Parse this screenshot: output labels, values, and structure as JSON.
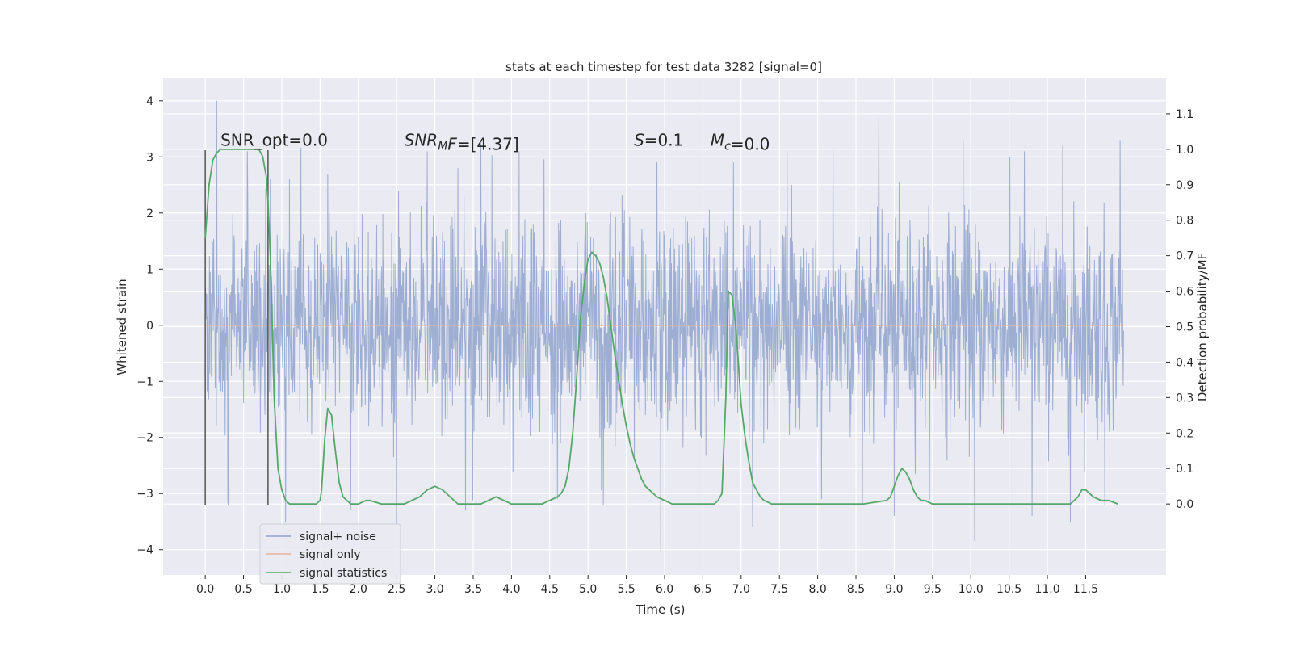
{
  "chart_data": {
    "type": "line",
    "title": "stats at each timestep for test data 3282 [signal=0]",
    "xlabel": "Time (s)",
    "ylabel_left": "Whitened strain",
    "ylabel_right": "Detection probability/MF",
    "xlim": [
      -0.55,
      12.55
    ],
    "ylim_left": [
      -4.45,
      4.4
    ],
    "ylim_right": [
      -0.2,
      1.2
    ],
    "x_ticks": [
      0.0,
      0.5,
      1.0,
      1.5,
      2.0,
      2.5,
      3.0,
      3.5,
      4.0,
      4.5,
      5.0,
      5.5,
      6.0,
      6.5,
      7.0,
      7.5,
      8.0,
      8.5,
      9.0,
      9.5,
      10.0,
      10.5,
      11.0,
      11.5
    ],
    "x_tick_labels": [
      "0.0",
      "0.5",
      "1.0",
      "1.5",
      "2.0",
      "2.5",
      "3.0",
      "3.5",
      "4.0",
      "4.5",
      "5.0",
      "5.5",
      "6.0",
      "6.5",
      "7.0",
      "7.5",
      "8.0",
      "8.5",
      "9.0",
      "9.5",
      "10.0",
      "10.5",
      "11.0",
      "11.5"
    ],
    "y_left_ticks": [
      -4,
      -3,
      -2,
      -1,
      0,
      1,
      2,
      3,
      4
    ],
    "y_left_tick_labels": [
      "−4",
      "−3",
      "−2",
      "−1",
      "0",
      "1",
      "2",
      "3",
      "4"
    ],
    "y_right_ticks": [
      0.0,
      0.1,
      0.2,
      0.3,
      0.4,
      0.5,
      0.6,
      0.7,
      0.8,
      0.9,
      1.0,
      1.1
    ],
    "y_right_tick_labels": [
      "0.0",
      "0.1",
      "0.2",
      "0.3",
      "0.4",
      "0.5",
      "0.6",
      "0.7",
      "0.8",
      "0.9",
      "1.0",
      "1.1"
    ],
    "grid": true,
    "legend_position": "lower-left",
    "annotations": [
      {
        "text": "SNR_opt=0.0",
        "x": 0.2
      },
      {
        "text_main": "SNR",
        "text_sub": "M",
        "text_rest": "F=[4.37]",
        "x": 2.6
      },
      {
        "text_main": "S",
        "text_sub": "",
        "text_rest": "=0.1",
        "x": 5.6
      },
      {
        "text_main": "M",
        "text_sub": "c",
        "text_rest": "=0.0",
        "x": 6.6
      }
    ],
    "annotation_y": 3.2,
    "window_markers": {
      "x": [
        0.0,
        0.82
      ],
      "y_range": [
        -3.2,
        3.12
      ],
      "color": "#555555"
    },
    "series": [
      {
        "name": "signal+ noise",
        "axis": "left",
        "color": "#8fa3cc",
        "t_range": [
          0.0,
          11.995
        ],
        "samples": 2400,
        "envelope_typical": [
          -2.2,
          2.2
        ],
        "spikes": [
          [
            0.15,
            4.0
          ],
          [
            0.55,
            3.1
          ],
          [
            0.85,
            2.6
          ],
          [
            1.1,
            2.6
          ],
          [
            1.6,
            2.7
          ],
          [
            2.5,
            3.85
          ],
          [
            2.9,
            3.1
          ],
          [
            3.3,
            2.8
          ],
          [
            3.6,
            3.25
          ],
          [
            4.1,
            3.1
          ],
          [
            5.9,
            2.9
          ],
          [
            6.9,
            2.9
          ],
          [
            7.6,
            3.1
          ],
          [
            8.2,
            3.15
          ],
          [
            8.8,
            3.75
          ],
          [
            9.9,
            3.3
          ],
          [
            10.7,
            3.1
          ],
          [
            11.2,
            3.2
          ],
          [
            11.95,
            3.3
          ],
          [
            0.3,
            -3.2
          ],
          [
            1.05,
            -3.5
          ],
          [
            1.9,
            -3.3
          ],
          [
            2.5,
            -3.6
          ],
          [
            3.4,
            -3.3
          ],
          [
            4.6,
            -3.1
          ],
          [
            5.2,
            -3.2
          ],
          [
            5.95,
            -4.05
          ],
          [
            7.15,
            -3.6
          ],
          [
            8.05,
            -3.1
          ],
          [
            9.0,
            -3.4
          ],
          [
            10.05,
            -3.85
          ],
          [
            10.8,
            -3.4
          ],
          [
            11.3,
            -3.5
          ],
          [
            11.75,
            -3.2
          ]
        ]
      },
      {
        "name": "signal only",
        "axis": "left",
        "color": "#e8b49b",
        "x": [
          0.0,
          12.0
        ],
        "values": [
          0.0,
          0.0
        ]
      },
      {
        "name": "signal statistics",
        "axis": "right",
        "color": "#55a868",
        "x": [
          0.0,
          0.05,
          0.1,
          0.15,
          0.2,
          0.3,
          0.4,
          0.5,
          0.6,
          0.7,
          0.75,
          0.8,
          0.82,
          0.85,
          0.9,
          0.95,
          1.0,
          1.05,
          1.1,
          1.2,
          1.3,
          1.4,
          1.45,
          1.5,
          1.52,
          1.56,
          1.6,
          1.65,
          1.7,
          1.75,
          1.8,
          1.9,
          2.0,
          2.1,
          2.15,
          2.3,
          2.5,
          2.6,
          2.7,
          2.8,
          2.9,
          3.0,
          3.1,
          3.2,
          3.3,
          3.4,
          3.5,
          3.6,
          3.7,
          3.8,
          3.9,
          4.0,
          4.2,
          4.4,
          4.5,
          4.6,
          4.65,
          4.7,
          4.75,
          4.8,
          4.85,
          4.9,
          4.95,
          5.0,
          5.05,
          5.1,
          5.15,
          5.2,
          5.25,
          5.3,
          5.35,
          5.4,
          5.45,
          5.5,
          5.55,
          5.6,
          5.65,
          5.7,
          5.75,
          5.8,
          5.9,
          6.0,
          6.1,
          6.3,
          6.5,
          6.65,
          6.7,
          6.75,
          6.8,
          6.83,
          6.88,
          6.93,
          6.97,
          7.0,
          7.05,
          7.1,
          7.15,
          7.2,
          7.25,
          7.3,
          7.4,
          7.6,
          8.0,
          8.3,
          8.6,
          8.9,
          8.95,
          9.0,
          9.05,
          9.1,
          9.15,
          9.2,
          9.25,
          9.3,
          9.35,
          9.4,
          9.5,
          9.8,
          10.0,
          10.5,
          11.0,
          11.2,
          11.3,
          11.35,
          11.4,
          11.45,
          11.5,
          11.55,
          11.6,
          11.7,
          11.8,
          11.92
        ],
        "values": [
          0.75,
          0.9,
          0.97,
          0.99,
          1.0,
          1.0,
          1.0,
          1.0,
          1.0,
          1.0,
          0.98,
          0.92,
          0.85,
          0.7,
          0.3,
          0.1,
          0.04,
          0.01,
          0.0,
          0.0,
          0.0,
          0.0,
          0.0,
          0.01,
          0.04,
          0.18,
          0.27,
          0.25,
          0.15,
          0.06,
          0.02,
          0.0,
          0.0,
          0.01,
          0.01,
          0.0,
          0.0,
          0.0,
          0.01,
          0.02,
          0.04,
          0.05,
          0.04,
          0.02,
          0.0,
          0.0,
          0.0,
          0.0,
          0.01,
          0.02,
          0.01,
          0.0,
          0.0,
          0.0,
          0.01,
          0.02,
          0.03,
          0.05,
          0.1,
          0.2,
          0.35,
          0.52,
          0.62,
          0.69,
          0.71,
          0.7,
          0.68,
          0.64,
          0.58,
          0.5,
          0.42,
          0.35,
          0.28,
          0.22,
          0.17,
          0.13,
          0.1,
          0.07,
          0.05,
          0.04,
          0.02,
          0.01,
          0.0,
          0.0,
          0.0,
          0.0,
          0.01,
          0.03,
          0.3,
          0.6,
          0.59,
          0.5,
          0.38,
          0.28,
          0.19,
          0.12,
          0.06,
          0.04,
          0.02,
          0.01,
          0.0,
          0.0,
          0.0,
          0.0,
          0.0,
          0.01,
          0.02,
          0.05,
          0.08,
          0.1,
          0.09,
          0.07,
          0.04,
          0.02,
          0.01,
          0.01,
          0.0,
          0.0,
          0.0,
          0.0,
          0.0,
          0.0,
          0.0,
          0.01,
          0.02,
          0.04,
          0.04,
          0.03,
          0.02,
          0.01,
          0.01,
          0.0
        ]
      }
    ]
  }
}
